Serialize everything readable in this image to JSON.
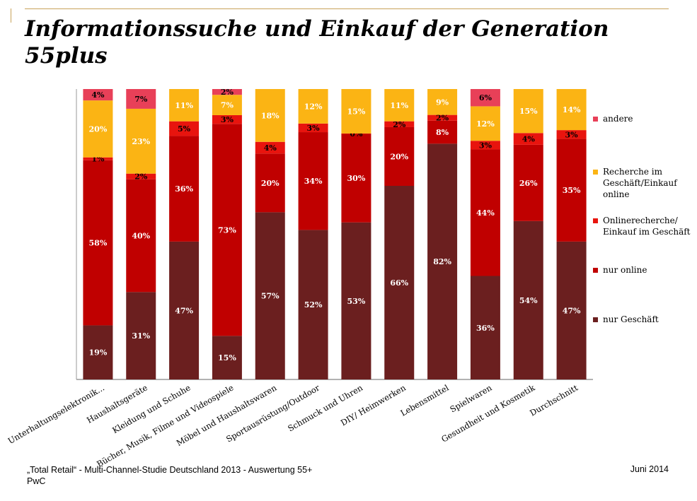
{
  "title": "Informationssuche und Einkauf der Generation 55plus",
  "footer": {
    "source": "„Total Retail“ - Multi-Channel-Studie Deutschland 2013 - Auswertung 55+",
    "company": "PwC",
    "date": "Juni 2014"
  },
  "chart_data": {
    "type": "bar",
    "stacked": true,
    "percent": true,
    "categories": [
      "Unterhaltungselektronik...",
      "Haushaltsgeräte",
      "Kleidung und Schuhe",
      "Bücher, Musik, Filme und Videospiele",
      "Möbel und Haushaltswaren",
      "Sportausrüstung/Outdoor",
      "Schmuck und Uhren",
      "DIY/ Heimwerken",
      "Lebensmittel",
      "Spielwaren",
      "Gesundheit und Kosmetik",
      "Durchschnitt"
    ],
    "series": [
      {
        "name": "nur Geschäft",
        "color": "#6b1f1f",
        "values": [
          19,
          31,
          47,
          15,
          57,
          52,
          53,
          66,
          82,
          36,
          54,
          47
        ]
      },
      {
        "name": "nur online",
        "color": "#c00000",
        "values": [
          58,
          40,
          36,
          73,
          20,
          34,
          30,
          20,
          8,
          44,
          26,
          35
        ]
      },
      {
        "name": "Onlinerecherche/\nEinkauf im Geschäft",
        "color": "#e8140e",
        "values": [
          1,
          2,
          5,
          3,
          4,
          3,
          0,
          2,
          2,
          3,
          4,
          3
        ]
      },
      {
        "name": "Recherche im\nGeschäft/Einkauf\nonline",
        "color": "#fbb414",
        "values": [
          20,
          23,
          11,
          7,
          18,
          12,
          15,
          11,
          9,
          12,
          15,
          14
        ]
      },
      {
        "name": "andere",
        "color": "#e84058",
        "values": [
          4,
          7,
          null,
          2,
          null,
          null,
          null,
          null,
          null,
          6,
          null,
          null
        ]
      }
    ],
    "legend_position": "right",
    "grid": false
  }
}
